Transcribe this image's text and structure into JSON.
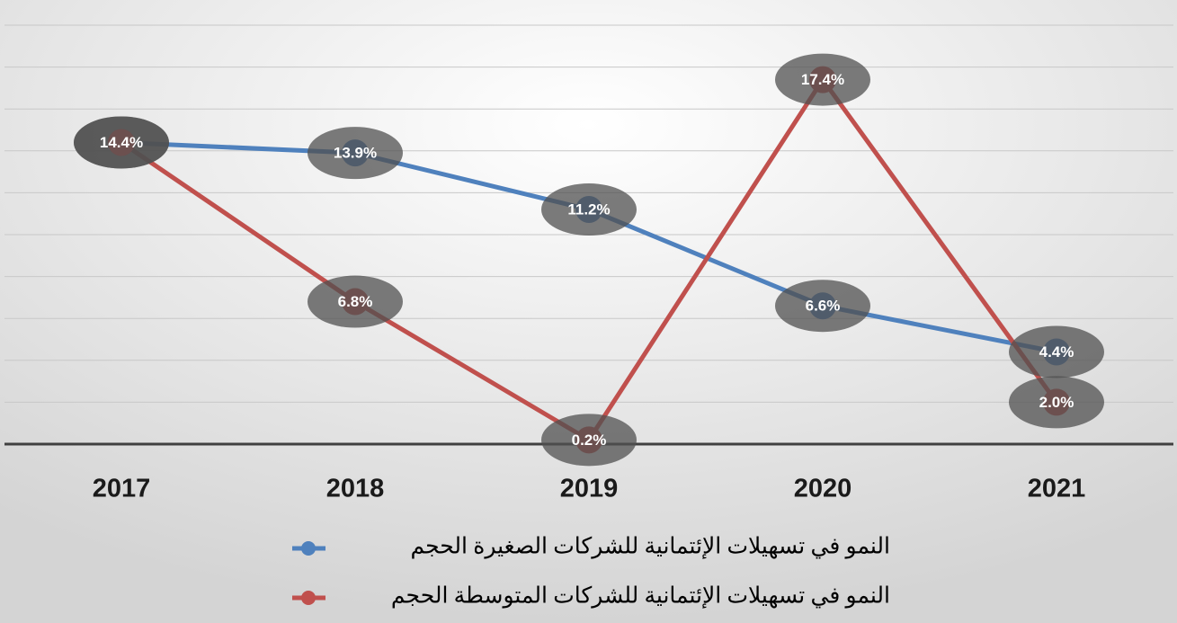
{
  "chart_data": {
    "type": "line",
    "categories": [
      "2017",
      "2018",
      "2019",
      "2020",
      "2021"
    ],
    "series": [
      {
        "name": "النمو في تسهيلات الإئتمانية للشركات الصغيرة الحجم",
        "color": "#4f81bd",
        "values": [
          14.4,
          13.9,
          11.2,
          6.6,
          4.4
        ],
        "value_labels": [
          "14.4%",
          "13.9%",
          "11.2%",
          "6.6%",
          "4.4%"
        ]
      },
      {
        "name": "النمو في تسهيلات الإئتمانية للشركات المتوسطة الحجم",
        "color": "#c0504d",
        "values": [
          14.4,
          6.8,
          0.2,
          17.4,
          2.0
        ],
        "value_labels": [
          "14.4%",
          "6.8%",
          "0.2%",
          "17.4%",
          "2.0%"
        ]
      }
    ],
    "ylim": [
      0,
      20
    ],
    "yticks": [
      0,
      2,
      4,
      6,
      8,
      10,
      12,
      14,
      16,
      18,
      20
    ],
    "grid": true
  }
}
